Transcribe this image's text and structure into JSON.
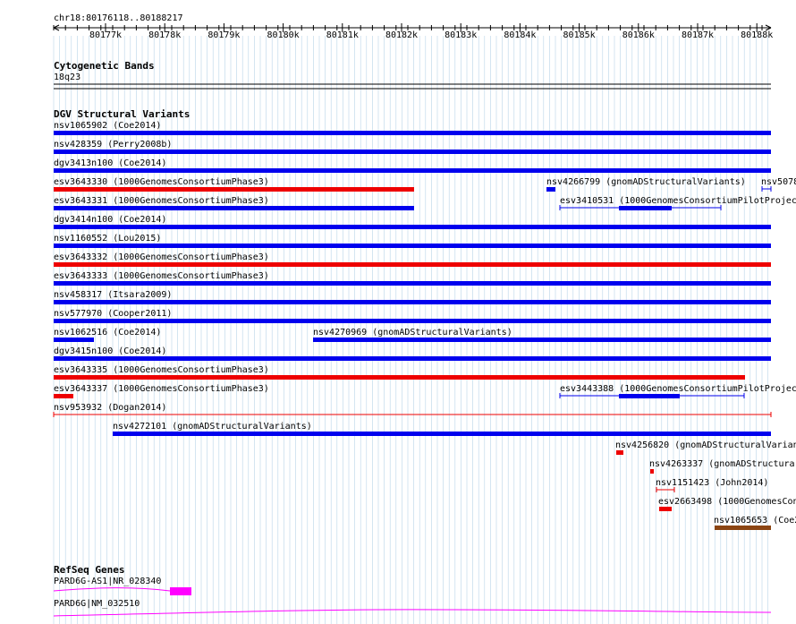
{
  "colors": {
    "blue": "#0000ee",
    "red": "#ee0000",
    "brown": "#8b4513",
    "magenta": "#ff00ff",
    "grid": "#b8d4e8"
  },
  "ruler": {
    "position": "chr18:80176118..80188217",
    "ticks": [
      "80177k",
      "80178k",
      "80179k",
      "80180k",
      "80181k",
      "80182k",
      "80183k",
      "80184k",
      "80185k",
      "80186k",
      "80187k",
      "80188k"
    ]
  },
  "cyto": {
    "title": "Cytogenetic Bands",
    "band": "18q23"
  },
  "dgv": {
    "title": "DGV Structural Variants",
    "variants": [
      {
        "label": "nsv1065902 (Coe2014)",
        "color": "blue"
      },
      {
        "label": "nsv428359 (Perry2008b)",
        "color": "blue"
      },
      {
        "label": "dgv3413n100 (Coe2014)",
        "color": "blue"
      },
      {
        "label": "esv3643330 (1000GenomesConsortiumPhase3)",
        "color": "red"
      },
      {
        "label": "nsv4266799 (gnomADStructuralVariants)",
        "color": "blue"
      },
      {
        "label": "nsv5078",
        "color": "blue"
      },
      {
        "label": "esv3643331 (1000GenomesConsortiumPhase3)",
        "color": "blue"
      },
      {
        "label": "esv3410531 (1000GenomesConsortiumPilotProjec",
        "color": "blue"
      },
      {
        "label": "dgv3414n100 (Coe2014)",
        "color": "blue"
      },
      {
        "label": "nsv1160552 (Lou2015)",
        "color": "blue"
      },
      {
        "label": "esv3643332 (1000GenomesConsortiumPhase3)",
        "color": "red"
      },
      {
        "label": "esv3643333 (1000GenomesConsortiumPhase3)",
        "color": "blue"
      },
      {
        "label": "nsv458317 (Itsara2009)",
        "color": "blue"
      },
      {
        "label": "nsv577970 (Cooper2011)",
        "color": "blue"
      },
      {
        "label": "nsv1062516 (Coe2014)",
        "color": "blue"
      },
      {
        "label": "nsv4270969 (gnomADStructuralVariants)",
        "color": "blue"
      },
      {
        "label": "dgv3415n100 (Coe2014)",
        "color": "blue"
      },
      {
        "label": "esv3643335 (1000GenomesConsortiumPhase3)",
        "color": "red"
      },
      {
        "label": "esv3643337 (1000GenomesConsortiumPhase3)",
        "color": "red"
      },
      {
        "label": "esv3443388 (1000GenomesConsortiumPilotProjec",
        "color": "blue"
      },
      {
        "label": "nsv953932 (Dogan2014)",
        "color": "red"
      },
      {
        "label": "nsv4272101 (gnomADStructuralVariants)",
        "color": "blue"
      },
      {
        "label": "nsv4256820 (gnomADStructuralVarian",
        "color": "red"
      },
      {
        "label": "nsv4263337 (gnomADStructura",
        "color": "red"
      },
      {
        "label": "nsv1151423 (John2014)",
        "color": "red"
      },
      {
        "label": "esv2663498 (1000GenomesCon",
        "color": "red"
      },
      {
        "label": "nsv1065653 (Coe2",
        "color": "brown"
      }
    ]
  },
  "refseq": {
    "title": "RefSeq Genes",
    "genes": [
      {
        "label": "PARD6G-AS1|NR_028340"
      },
      {
        "label": "PARD6G|NM_032510"
      }
    ]
  }
}
